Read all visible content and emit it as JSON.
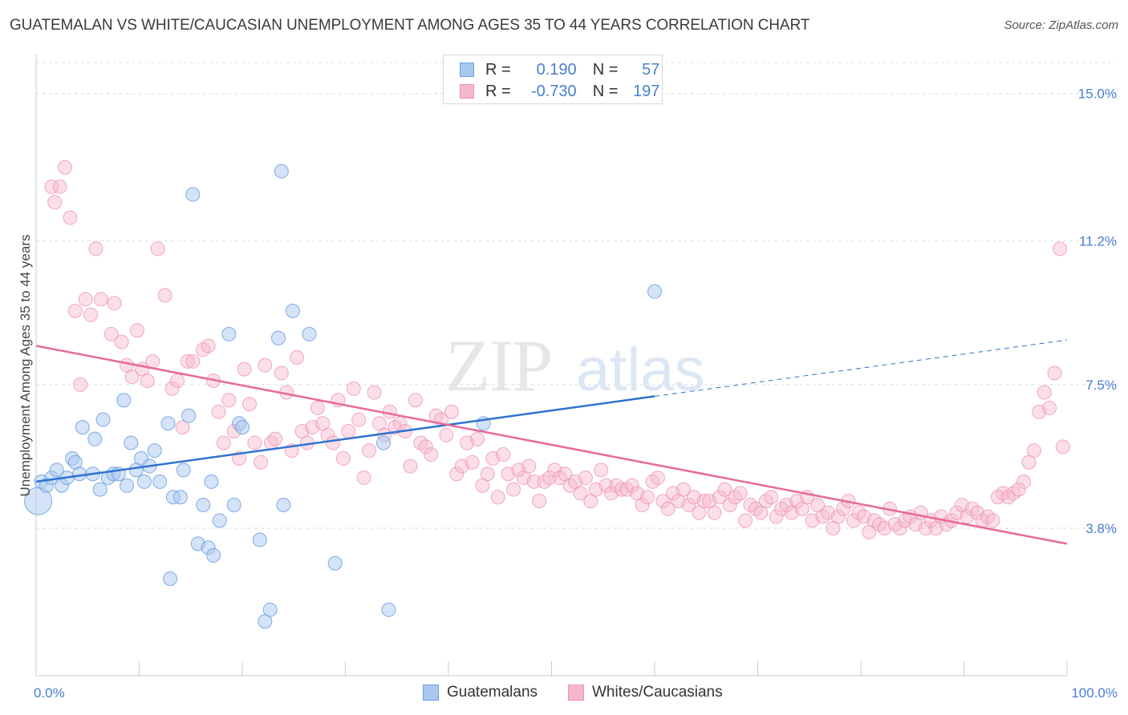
{
  "title": "GUATEMALAN VS WHITE/CAUCASIAN UNEMPLOYMENT AMONG AGES 35 TO 44 YEARS CORRELATION CHART",
  "source": "Source: ZipAtlas.com",
  "watermark": {
    "zip": "ZIP",
    "atlas": "atlas"
  },
  "colors": {
    "blue_fill": "#a9c8f0",
    "blue_stroke": "#6b9ee0",
    "blue_line": "#2f73d0",
    "pink_fill": "#f6b8cc",
    "pink_stroke": "#ec8fae",
    "pink_line": "#e76a98",
    "grid": "#dddddd",
    "tick_text": "#4a7fd1"
  },
  "stats": [
    {
      "r_label": "R =",
      "r_value": "0.190",
      "n_label": "N =",
      "n_value": "57"
    },
    {
      "r_label": "R =",
      "r_value": "-0.730",
      "n_label": "N =",
      "n_value": "197"
    }
  ],
  "legend": [
    {
      "label": "Guatemalans"
    },
    {
      "label": "Whites/Caucasians"
    }
  ],
  "chart_data": {
    "type": "scatter",
    "xlabel": "",
    "ylabel": "Unemployment Among Ages 35 to 44 years",
    "xlim": [
      0,
      100
    ],
    "ylim": [
      0,
      15.8
    ],
    "x_tick_labels": [
      "0.0%",
      "100.0%"
    ],
    "y_ticks": [
      3.8,
      7.5,
      11.2,
      15.0
    ],
    "y_tick_labels": [
      "3.8%",
      "7.5%",
      "11.2%",
      "15.0%"
    ],
    "grid": true,
    "series": [
      {
        "name": "Guatemalans",
        "trend": {
          "x0": 0,
          "y0": 5.0,
          "x1": 60,
          "y1": 7.2,
          "dashed_to_x": 100,
          "dashed_to_y": 8.65
        },
        "points": [
          [
            0.2,
            4.5,
            1
          ],
          [
            0.5,
            5.0,
            0
          ],
          [
            1.0,
            4.9,
            0
          ],
          [
            1.5,
            5.1,
            0
          ],
          [
            2.0,
            5.3,
            0
          ],
          [
            2.5,
            4.9,
            0
          ],
          [
            3.0,
            5.1,
            0
          ],
          [
            3.5,
            5.6,
            0
          ],
          [
            3.8,
            5.5,
            0
          ],
          [
            4.2,
            5.2,
            0
          ],
          [
            4.5,
            6.4,
            0
          ],
          [
            5.5,
            5.2,
            0
          ],
          [
            5.7,
            6.1,
            0
          ],
          [
            6.2,
            4.8,
            0
          ],
          [
            6.5,
            6.6,
            0
          ],
          [
            7.0,
            5.1,
            0
          ],
          [
            7.5,
            5.2,
            0
          ],
          [
            8.0,
            5.2,
            0
          ],
          [
            8.5,
            7.1,
            0
          ],
          [
            8.8,
            4.9,
            0
          ],
          [
            9.2,
            6.0,
            0
          ],
          [
            9.7,
            5.3,
            0
          ],
          [
            10.2,
            5.6,
            0
          ],
          [
            10.5,
            5.0,
            0
          ],
          [
            11.0,
            5.4,
            0
          ],
          [
            11.5,
            5.8,
            0
          ],
          [
            12.0,
            5.0,
            0
          ],
          [
            12.8,
            6.5,
            0
          ],
          [
            13.0,
            2.5,
            0
          ],
          [
            13.3,
            4.6,
            0
          ],
          [
            14.0,
            4.6,
            0
          ],
          [
            14.3,
            5.3,
            0
          ],
          [
            14.8,
            6.7,
            0
          ],
          [
            15.2,
            12.4,
            0
          ],
          [
            15.7,
            3.4,
            0
          ],
          [
            16.2,
            4.4,
            0
          ],
          [
            16.7,
            3.3,
            0
          ],
          [
            17.0,
            5.0,
            0
          ],
          [
            17.2,
            3.1,
            0
          ],
          [
            17.8,
            4.0,
            0
          ],
          [
            18.7,
            8.8,
            0
          ],
          [
            19.2,
            4.4,
            0
          ],
          [
            19.7,
            6.5,
            0
          ],
          [
            20.0,
            6.4,
            0
          ],
          [
            21.7,
            3.5,
            0
          ],
          [
            22.2,
            1.4,
            0
          ],
          [
            22.7,
            1.7,
            0
          ],
          [
            23.5,
            8.7,
            0
          ],
          [
            23.8,
            13.0,
            0
          ],
          [
            24.0,
            4.4,
            0
          ],
          [
            24.9,
            9.4,
            0
          ],
          [
            26.5,
            8.8,
            0
          ],
          [
            29.0,
            2.9,
            0
          ],
          [
            33.7,
            6.0,
            0
          ],
          [
            34.2,
            1.7,
            0
          ],
          [
            43.4,
            6.5,
            0
          ],
          [
            60.0,
            9.9,
            0
          ]
        ]
      },
      {
        "name": "Whites/Caucasians",
        "trend": {
          "x0": 0,
          "y0": 8.5,
          "x1": 100,
          "y1": 3.4
        },
        "points": [
          [
            1.5,
            12.6
          ],
          [
            1.8,
            12.2
          ],
          [
            2.3,
            12.6
          ],
          [
            2.8,
            13.1
          ],
          [
            3.3,
            11.8
          ],
          [
            3.8,
            9.4
          ],
          [
            4.3,
            7.5
          ],
          [
            4.8,
            9.7
          ],
          [
            5.3,
            9.3
          ],
          [
            5.8,
            11.0
          ],
          [
            6.3,
            9.7
          ],
          [
            7.3,
            8.8
          ],
          [
            7.6,
            9.6
          ],
          [
            8.3,
            8.6
          ],
          [
            8.8,
            8.0
          ],
          [
            9.3,
            7.7
          ],
          [
            9.8,
            8.9
          ],
          [
            10.3,
            7.9
          ],
          [
            10.8,
            7.6
          ],
          [
            11.3,
            8.1
          ],
          [
            11.8,
            11.0
          ],
          [
            12.5,
            9.8
          ],
          [
            13.2,
            7.4
          ],
          [
            13.7,
            7.6
          ],
          [
            14.2,
            6.4
          ],
          [
            14.7,
            8.1
          ],
          [
            15.2,
            8.1
          ],
          [
            16.2,
            8.4
          ],
          [
            16.7,
            8.5
          ],
          [
            17.2,
            7.6
          ],
          [
            17.7,
            6.8
          ],
          [
            18.2,
            6.0
          ],
          [
            18.7,
            7.1
          ],
          [
            19.2,
            6.3
          ],
          [
            19.7,
            5.6
          ],
          [
            20.2,
            7.9
          ],
          [
            20.7,
            7.0
          ],
          [
            21.2,
            6.0
          ],
          [
            21.8,
            5.5
          ],
          [
            22.2,
            8.0
          ],
          [
            22.8,
            6.0
          ],
          [
            23.2,
            6.1
          ],
          [
            23.8,
            7.8
          ],
          [
            24.3,
            7.3
          ],
          [
            24.8,
            5.8
          ],
          [
            25.3,
            8.2
          ],
          [
            25.8,
            6.3
          ],
          [
            26.3,
            6.0
          ],
          [
            26.8,
            6.4
          ],
          [
            27.3,
            6.9
          ],
          [
            27.8,
            6.5
          ],
          [
            28.3,
            6.2
          ],
          [
            28.8,
            6.0
          ],
          [
            29.3,
            7.1
          ],
          [
            29.8,
            5.6
          ],
          [
            30.3,
            6.3
          ],
          [
            30.8,
            7.4
          ],
          [
            31.3,
            6.6
          ],
          [
            31.8,
            5.1
          ],
          [
            32.3,
            5.8
          ],
          [
            32.8,
            7.3
          ],
          [
            33.3,
            6.5
          ],
          [
            33.8,
            6.2
          ],
          [
            34.3,
            6.8
          ],
          [
            34.8,
            6.4
          ],
          [
            35.3,
            6.5
          ],
          [
            35.8,
            6.3
          ],
          [
            36.3,
            5.4
          ],
          [
            36.8,
            7.1
          ],
          [
            37.3,
            6.0
          ],
          [
            37.8,
            5.9
          ],
          [
            38.3,
            5.7
          ],
          [
            38.8,
            6.7
          ],
          [
            39.3,
            6.6
          ],
          [
            39.8,
            6.2
          ],
          [
            40.3,
            6.8
          ],
          [
            40.8,
            5.2
          ],
          [
            41.3,
            5.4
          ],
          [
            41.8,
            6.0
          ],
          [
            42.3,
            5.5
          ],
          [
            42.8,
            6.1
          ],
          [
            43.3,
            4.9
          ],
          [
            43.8,
            5.2
          ],
          [
            44.3,
            5.6
          ],
          [
            44.8,
            4.6
          ],
          [
            45.3,
            5.7
          ],
          [
            45.8,
            5.2
          ],
          [
            46.3,
            4.8
          ],
          [
            46.8,
            5.3
          ],
          [
            47.3,
            5.1
          ],
          [
            47.8,
            5.4
          ],
          [
            48.3,
            5.0
          ],
          [
            48.8,
            4.5
          ],
          [
            49.3,
            5.0
          ],
          [
            49.8,
            5.1
          ],
          [
            50.3,
            5.3
          ],
          [
            50.8,
            5.1
          ],
          [
            51.3,
            5.2
          ],
          [
            51.8,
            4.9
          ],
          [
            52.3,
            5.0
          ],
          [
            52.8,
            4.7
          ],
          [
            53.3,
            5.1
          ],
          [
            53.8,
            4.5
          ],
          [
            54.3,
            4.8
          ],
          [
            54.8,
            5.3
          ],
          [
            55.3,
            4.9
          ],
          [
            55.8,
            4.7
          ],
          [
            56.3,
            4.9
          ],
          [
            56.8,
            4.8
          ],
          [
            57.3,
            4.8
          ],
          [
            57.8,
            4.9
          ],
          [
            58.3,
            4.7
          ],
          [
            58.8,
            4.4
          ],
          [
            59.3,
            4.6
          ],
          [
            59.8,
            5.0
          ],
          [
            60.3,
            5.1
          ],
          [
            60.8,
            4.5
          ],
          [
            61.3,
            4.3
          ],
          [
            61.8,
            4.7
          ],
          [
            62.3,
            4.5
          ],
          [
            62.8,
            4.8
          ],
          [
            63.3,
            4.4
          ],
          [
            63.8,
            4.6
          ],
          [
            64.3,
            4.2
          ],
          [
            64.8,
            4.5
          ],
          [
            65.3,
            4.5
          ],
          [
            65.8,
            4.2
          ],
          [
            66.3,
            4.6
          ],
          [
            66.8,
            4.8
          ],
          [
            67.3,
            4.4
          ],
          [
            67.8,
            4.6
          ],
          [
            68.3,
            4.7
          ],
          [
            68.8,
            4.0
          ],
          [
            69.3,
            4.4
          ],
          [
            69.8,
            4.3
          ],
          [
            70.3,
            4.2
          ],
          [
            70.8,
            4.5
          ],
          [
            71.3,
            4.6
          ],
          [
            71.8,
            4.1
          ],
          [
            72.3,
            4.3
          ],
          [
            72.8,
            4.4
          ],
          [
            73.3,
            4.2
          ],
          [
            73.8,
            4.5
          ],
          [
            74.3,
            4.3
          ],
          [
            74.8,
            4.6
          ],
          [
            75.3,
            4.0
          ],
          [
            75.8,
            4.4
          ],
          [
            76.3,
            4.1
          ],
          [
            76.8,
            4.2
          ],
          [
            77.3,
            3.8
          ],
          [
            77.8,
            4.1
          ],
          [
            78.3,
            4.3
          ],
          [
            78.8,
            4.5
          ],
          [
            79.3,
            4.0
          ],
          [
            79.8,
            4.2
          ],
          [
            80.3,
            4.1
          ],
          [
            80.8,
            3.7
          ],
          [
            81.3,
            4.0
          ],
          [
            81.8,
            3.9
          ],
          [
            82.3,
            3.8
          ],
          [
            82.8,
            4.3
          ],
          [
            83.3,
            3.9
          ],
          [
            83.8,
            3.8
          ],
          [
            84.3,
            4.0
          ],
          [
            84.8,
            4.1
          ],
          [
            85.3,
            3.9
          ],
          [
            85.8,
            4.2
          ],
          [
            86.3,
            3.8
          ],
          [
            86.8,
            4.0
          ],
          [
            87.3,
            3.8
          ],
          [
            87.8,
            4.1
          ],
          [
            88.3,
            3.9
          ],
          [
            88.8,
            4.0
          ],
          [
            89.3,
            4.2
          ],
          [
            89.8,
            4.4
          ],
          [
            90.3,
            4.1
          ],
          [
            90.8,
            4.3
          ],
          [
            91.3,
            4.2
          ],
          [
            91.8,
            4.0
          ],
          [
            92.3,
            4.1
          ],
          [
            92.8,
            4.0
          ],
          [
            93.3,
            4.6
          ],
          [
            93.8,
            4.7
          ],
          [
            94.3,
            4.6
          ],
          [
            94.8,
            4.7
          ],
          [
            95.3,
            4.8
          ],
          [
            95.8,
            5.0
          ],
          [
            96.3,
            5.5
          ],
          [
            96.8,
            5.8
          ],
          [
            97.3,
            6.8
          ],
          [
            97.8,
            7.3
          ],
          [
            98.3,
            6.9
          ],
          [
            98.8,
            7.8
          ],
          [
            99.3,
            11.0
          ],
          [
            99.6,
            5.9
          ]
        ]
      }
    ]
  }
}
